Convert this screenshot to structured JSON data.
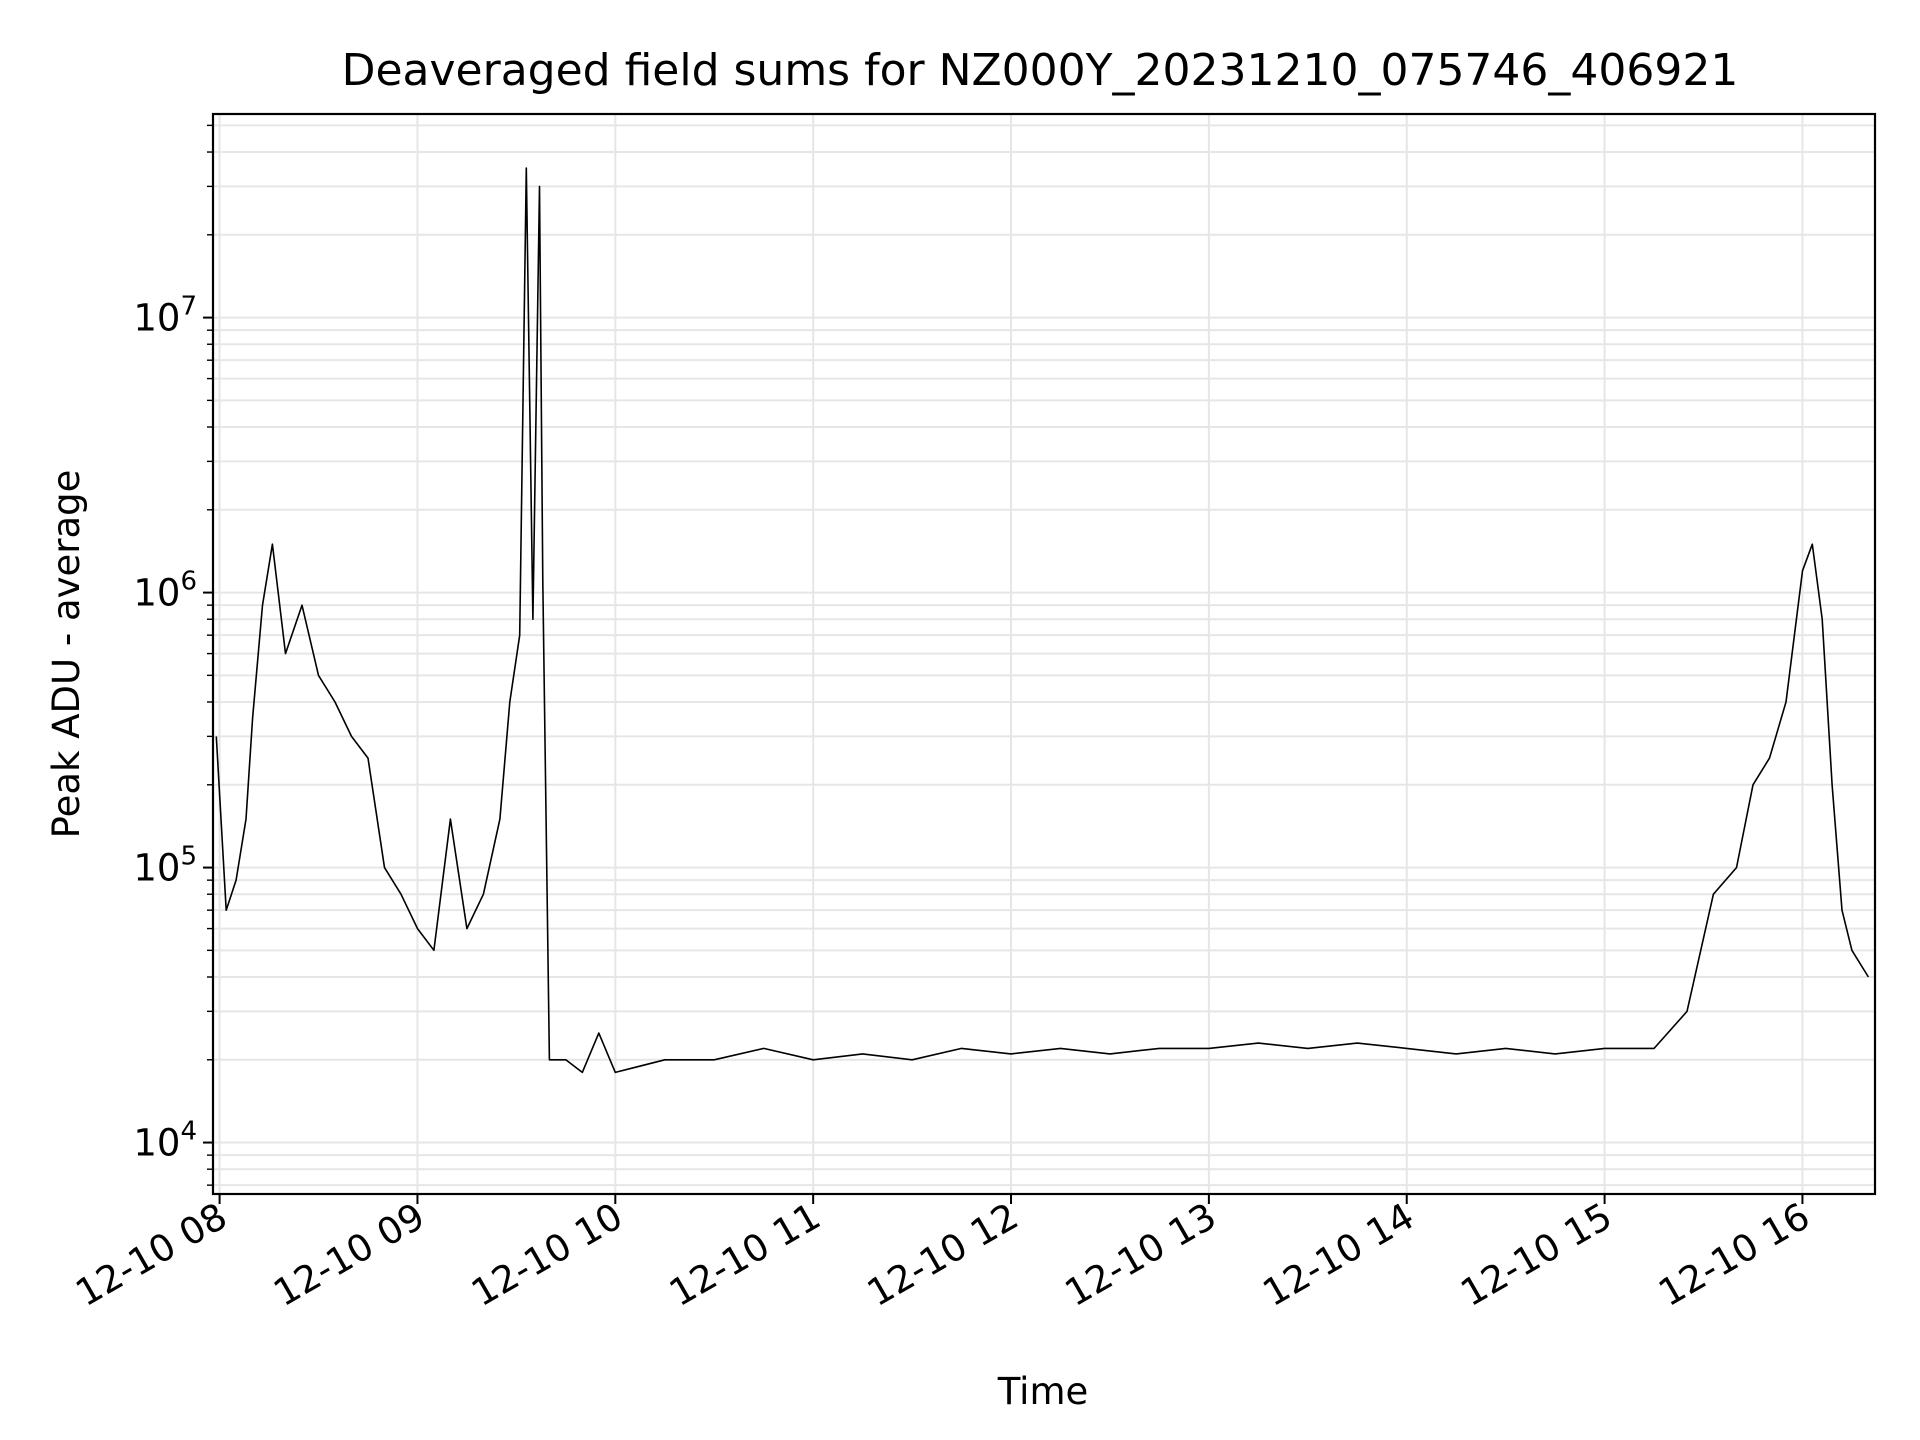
{
  "chart_data": {
    "type": "line",
    "title": "Deaveraged field sums for NZ000Y_20231210_075746_406921",
    "xlabel": "Time",
    "ylabel": "Peak ADU - average",
    "yscale": "log",
    "xlim": [
      "2023-12-10 07:58",
      "2023-12-10 16:22"
    ],
    "ylim": [
      6500,
      55000000
    ],
    "grid": true,
    "line_color": "#000000",
    "x_ticks": [
      "12-10 08",
      "12-10 09",
      "12-10 10",
      "12-10 11",
      "12-10 12",
      "12-10 13",
      "12-10 14",
      "12-10 15",
      "12-10 16"
    ],
    "y_ticks": [
      {
        "base": "10",
        "exp": "4",
        "value": 10000
      },
      {
        "base": "10",
        "exp": "5",
        "value": 100000
      },
      {
        "base": "10",
        "exp": "6",
        "value": 1000000
      },
      {
        "base": "10",
        "exp": "7",
        "value": 10000000
      }
    ],
    "series": [
      {
        "x": [
          "2023-12-10 07:59",
          "2023-12-10 08:02",
          "2023-12-10 08:05",
          "2023-12-10 08:08",
          "2023-12-10 08:10",
          "2023-12-10 08:13",
          "2023-12-10 08:16",
          "2023-12-10 08:20",
          "2023-12-10 08:25",
          "2023-12-10 08:30",
          "2023-12-10 08:35",
          "2023-12-10 08:40",
          "2023-12-10 08:45",
          "2023-12-10 08:50",
          "2023-12-10 08:55",
          "2023-12-10 09:00",
          "2023-12-10 09:05",
          "2023-12-10 09:10",
          "2023-12-10 09:15",
          "2023-12-10 09:20",
          "2023-12-10 09:25",
          "2023-12-10 09:28",
          "2023-12-10 09:31",
          "2023-12-10 09:33",
          "2023-12-10 09:35",
          "2023-12-10 09:37",
          "2023-12-10 09:38",
          "2023-12-10 09:40",
          "2023-12-10 09:45",
          "2023-12-10 09:50",
          "2023-12-10 09:55",
          "2023-12-10 10:00",
          "2023-12-10 10:15",
          "2023-12-10 10:30",
          "2023-12-10 10:45",
          "2023-12-10 11:00",
          "2023-12-10 11:15",
          "2023-12-10 11:30",
          "2023-12-10 11:45",
          "2023-12-10 12:00",
          "2023-12-10 12:15",
          "2023-12-10 12:30",
          "2023-12-10 12:45",
          "2023-12-10 13:00",
          "2023-12-10 13:15",
          "2023-12-10 13:30",
          "2023-12-10 13:45",
          "2023-12-10 14:00",
          "2023-12-10 14:15",
          "2023-12-10 14:30",
          "2023-12-10 14:45",
          "2023-12-10 15:00",
          "2023-12-10 15:15",
          "2023-12-10 15:25",
          "2023-12-10 15:33",
          "2023-12-10 15:40",
          "2023-12-10 15:45",
          "2023-12-10 15:50",
          "2023-12-10 15:55",
          "2023-12-10 16:00",
          "2023-12-10 16:03",
          "2023-12-10 16:06",
          "2023-12-10 16:09",
          "2023-12-10 16:12",
          "2023-12-10 16:15",
          "2023-12-10 16:20"
        ],
        "values": [
          300000,
          70000,
          90000,
          150000,
          350000,
          900000,
          1500000,
          600000,
          900000,
          500000,
          400000,
          300000,
          250000,
          100000,
          80000,
          60000,
          50000,
          150000,
          60000,
          80000,
          150000,
          400000,
          700000,
          35000000,
          800000,
          30000000,
          1100000,
          20000,
          20000,
          18000,
          25000,
          18000,
          20000,
          20000,
          22000,
          20000,
          21000,
          20000,
          22000,
          21000,
          22000,
          21000,
          22000,
          22000,
          23000,
          22000,
          23000,
          22000,
          21000,
          22000,
          21000,
          22000,
          22000,
          30000,
          80000,
          100000,
          200000,
          250000,
          400000,
          1200000,
          1500000,
          800000,
          200000,
          70000,
          50000,
          40000
        ]
      }
    ]
  }
}
